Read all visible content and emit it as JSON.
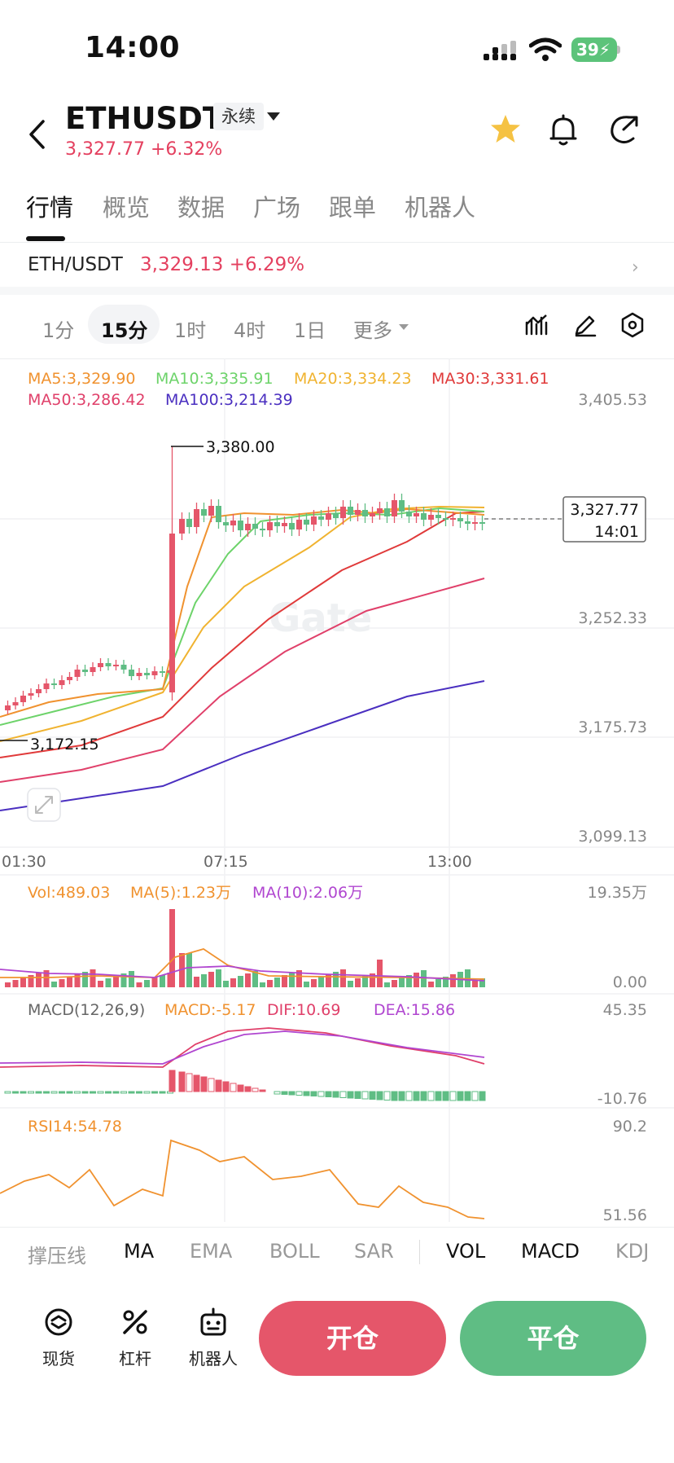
{
  "status_bar": {
    "time": "14:00",
    "battery": "39"
  },
  "header": {
    "symbol": "ETHUSDT",
    "contract_type": "永续",
    "price_change": "3,327.77 +6.32%"
  },
  "tabs": [
    {
      "label": "行情",
      "active": true
    },
    {
      "label": "概览"
    },
    {
      "label": "数据"
    },
    {
      "label": "广场"
    },
    {
      "label": "跟单"
    },
    {
      "label": "机器人"
    }
  ],
  "spot_pair": {
    "name": "ETH/USDT",
    "price_change": "3,329.13 +6.29%"
  },
  "intervals": [
    {
      "label": "1分"
    },
    {
      "label": "15分",
      "active": true
    },
    {
      "label": "1时"
    },
    {
      "label": "4时"
    },
    {
      "label": "1日"
    },
    {
      "label": "更多"
    }
  ],
  "main_chart": {
    "ma_row1": [
      "MA5:3,329.90",
      "MA10:3,335.91",
      "MA20:3,334.23",
      "MA30:3,331.61"
    ],
    "ma_row2": [
      "MA50:3,286.42",
      "MA100:3,214.39"
    ],
    "ma_colors": {
      "ma5": "#f0922f",
      "ma10": "#6dd36a",
      "ma20": "#f0b330",
      "ma30": "#e03a3a",
      "ma50": "#e0406a",
      "ma100": "#4a2fc0"
    },
    "price_axis": [
      "3,405.53",
      "3,252.33",
      "3,175.73",
      "3,099.13"
    ],
    "time_axis": [
      "01:30",
      "07:15",
      "13:00"
    ],
    "high_marker": "3,380.00",
    "low_marker": "3,172.15",
    "last_price": "3,327.77",
    "countdown": "14:01",
    "watermark": "Gate"
  },
  "volume": {
    "labels": [
      "Vol:489.03",
      "MA(5):1.23万",
      "MA(10):2.06万"
    ],
    "axis": [
      "19.35万",
      "0.00"
    ]
  },
  "macd": {
    "labels": [
      "MACD(12,26,9)",
      "MACD:-5.17",
      "DIF:10.69",
      "DEA:15.86"
    ],
    "axis": [
      "45.35",
      "-10.76"
    ]
  },
  "rsi": {
    "label": "RSI14:54.78",
    "axis": [
      "90.2",
      "51.56"
    ]
  },
  "indicator_tabs": [
    "撑压线",
    "MA",
    "EMA",
    "BOLL",
    "SAR",
    "VOL",
    "MACD",
    "KDJ"
  ],
  "bottom_bar": {
    "items": [
      "现货",
      "杠杆",
      "机器人"
    ],
    "open_label": "开仓",
    "close_label": "平仓"
  },
  "colors": {
    "up": "#e5566a",
    "down": "#5fbd84",
    "accent_star": "#f5c243"
  }
}
